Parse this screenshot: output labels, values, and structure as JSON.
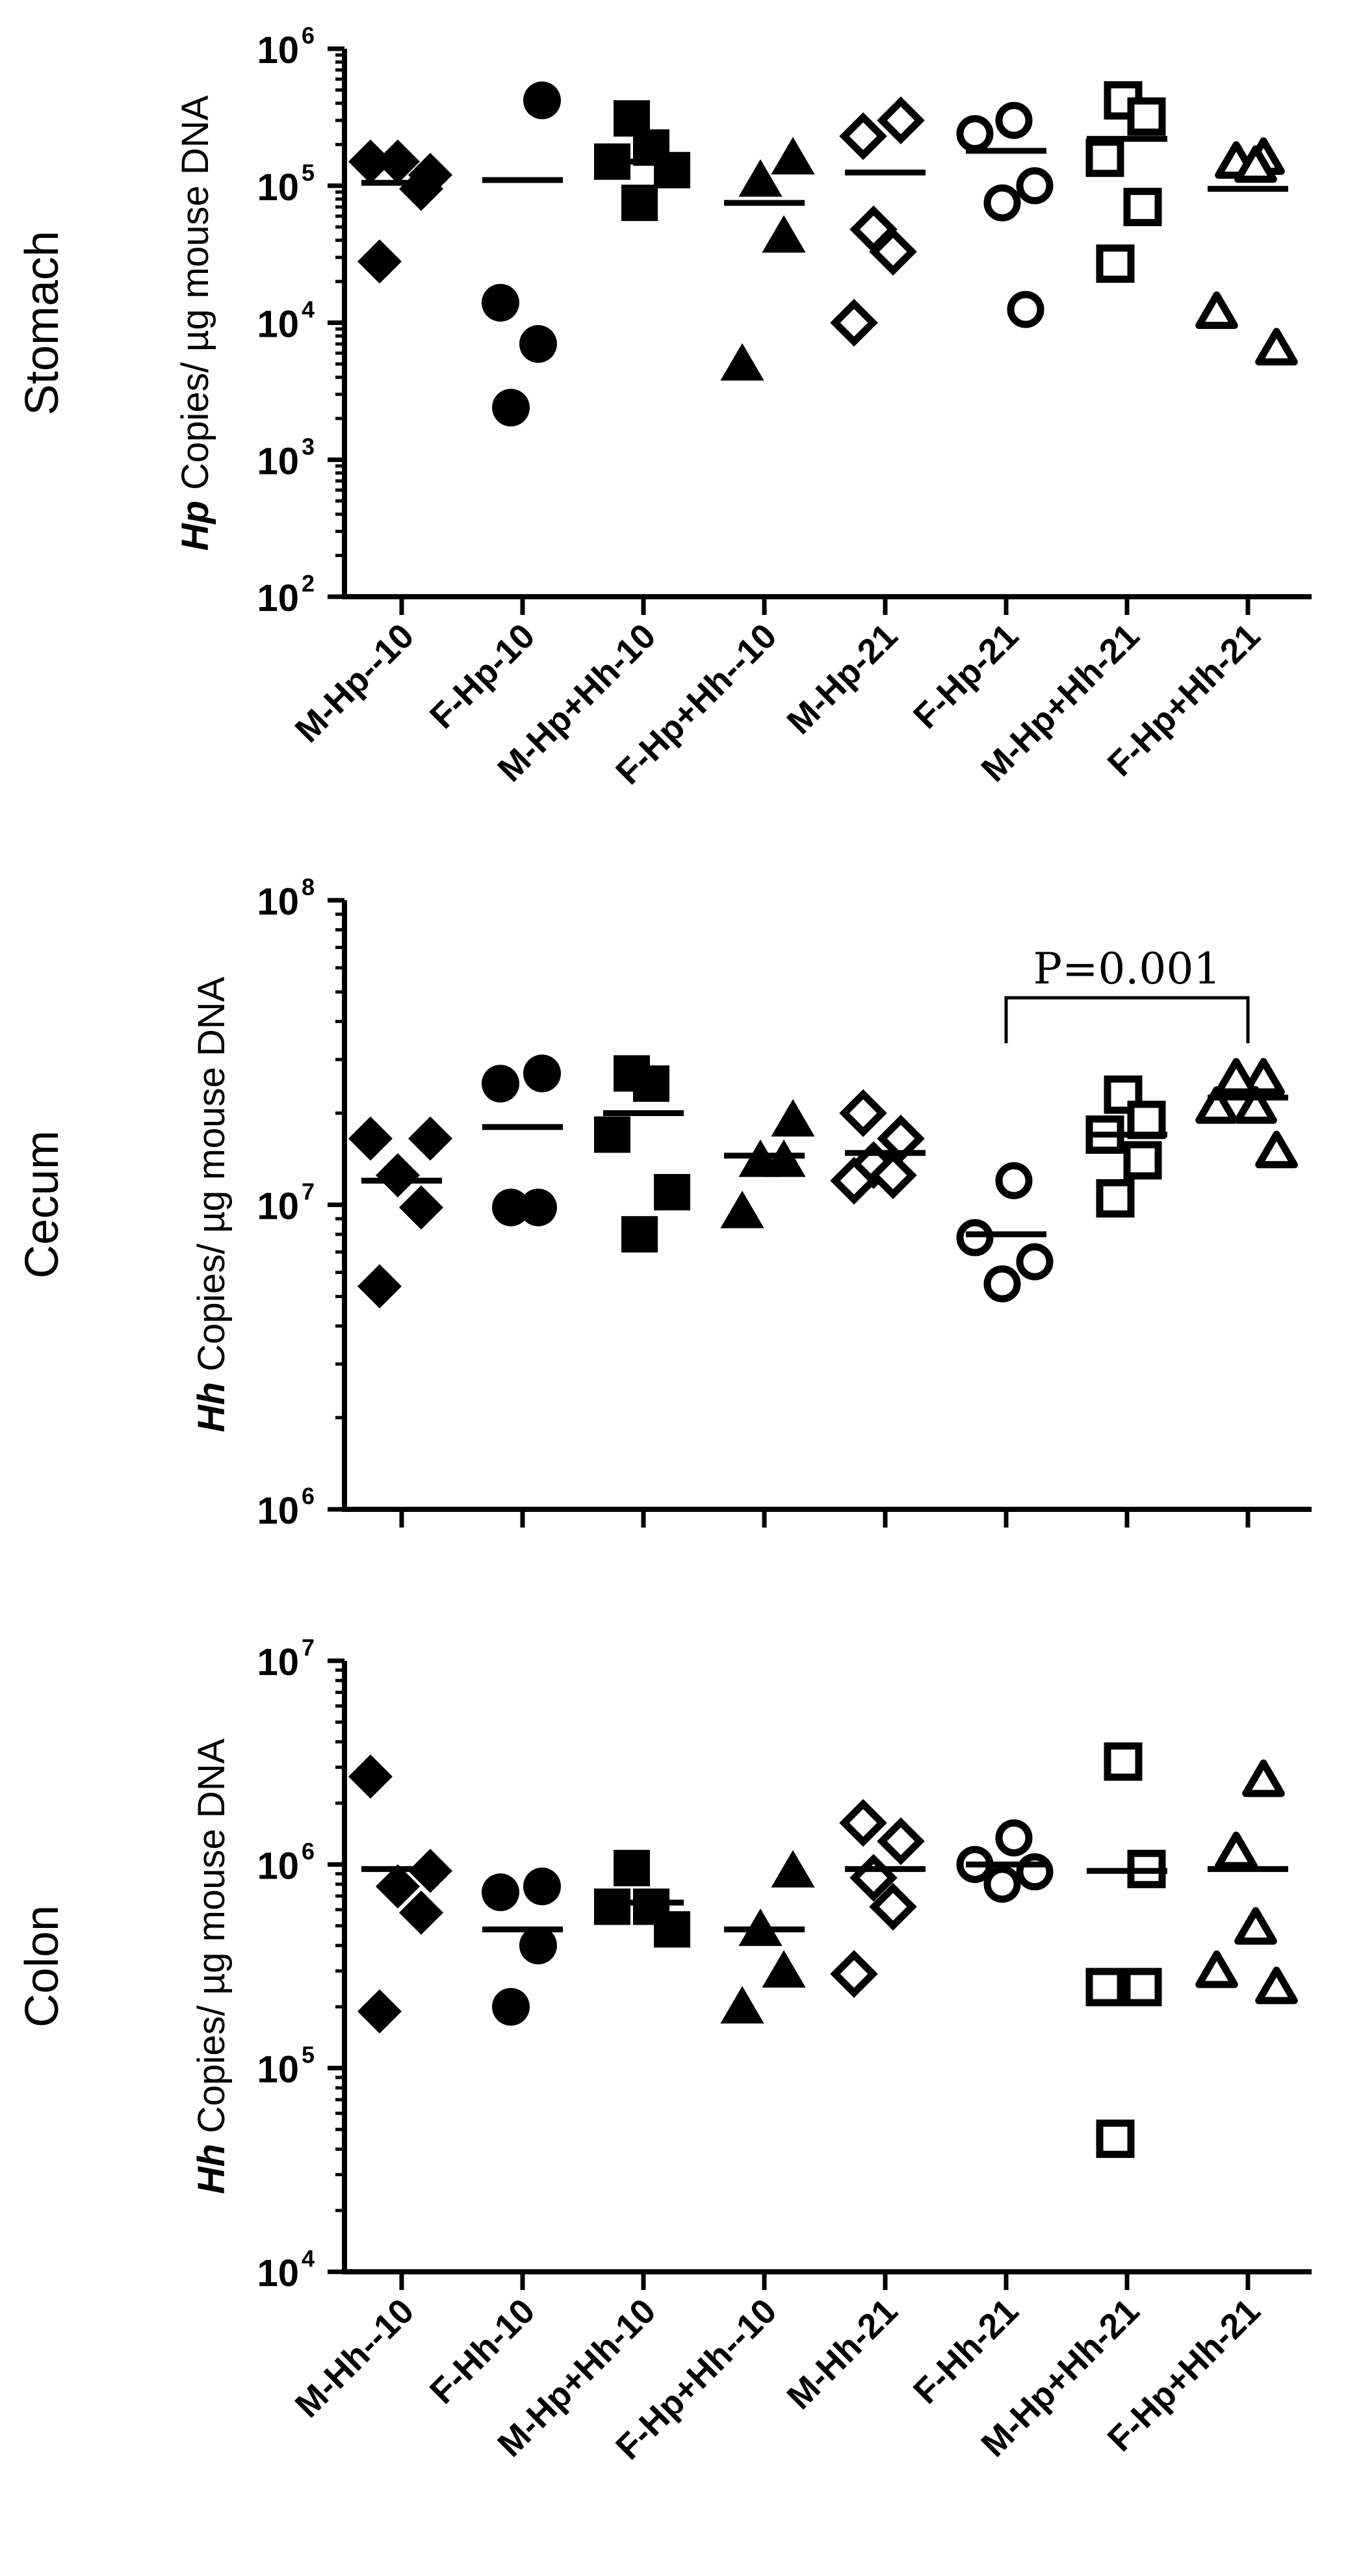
{
  "chart_data": [
    {
      "type": "scatter",
      "section_label": "Stomach",
      "ylabel_italic": "Hp",
      "ylabel_rest": " Copies/ µg mouse DNA",
      "yscale": "log",
      "ylim": [
        100,
        1000000
      ],
      "ytick_exponents": [
        2,
        3,
        4,
        5,
        6
      ],
      "categories": [
        "M-Hp--10",
        "F-Hp-10",
        "M-Hp+Hh-10",
        "F-Hp+Hh--10",
        "M-Hp-21",
        "F-Hp-21",
        "M-Hp+Hh-21",
        "F-Hp+Hh-21"
      ],
      "markers": [
        "diamond-filled",
        "circle-filled",
        "square-filled",
        "triangle-filled",
        "diamond-open",
        "circle-open",
        "square-open",
        "triangle-open"
      ],
      "points": [
        [
          150000,
          120000,
          150000,
          95000,
          28000
        ],
        [
          420000,
          14000,
          7000,
          2400
        ],
        [
          310000,
          190000,
          150000,
          130000,
          75000
        ],
        [
          160000,
          110000,
          43000,
          5000
        ],
        [
          230000,
          300000,
          48000,
          33000,
          10000
        ],
        [
          300000,
          240000,
          100000,
          75000,
          12500
        ],
        [
          420000,
          320000,
          160000,
          70000,
          27000
        ],
        [
          160000,
          150000,
          140000,
          12000,
          6500
        ]
      ],
      "means": [
        105000,
        110000,
        150000,
        75000,
        125000,
        180000,
        220000,
        95000
      ],
      "annotation": null
    },
    {
      "type": "scatter",
      "section_label": "Cecum",
      "ylabel_italic": "Hh",
      "ylabel_rest": " Copies/ µg mouse DNA",
      "yscale": "log",
      "ylim": [
        1000000,
        100000000
      ],
      "ytick_exponents": [
        6,
        7,
        8
      ],
      "categories": [],
      "markers": [
        "diamond-filled",
        "circle-filled",
        "square-filled",
        "triangle-filled",
        "diamond-open",
        "circle-open",
        "square-open",
        "triangle-open"
      ],
      "points": [
        [
          16500000,
          16500000,
          12500000,
          9800000,
          5400000
        ],
        [
          27000000,
          25000000,
          9800000,
          9800000
        ],
        [
          27000000,
          25000000,
          17000000,
          11000000,
          8000000
        ],
        [
          19000000,
          14000000,
          14000000,
          9500000
        ],
        [
          20000000,
          16500000,
          13500000,
          12500000,
          12000000
        ],
        [
          12000000,
          7800000,
          6500000,
          5500000
        ],
        [
          23000000,
          19000000,
          17000000,
          14000000,
          10500000
        ],
        [
          26000000,
          26000000,
          21000000,
          21000000,
          15000000
        ]
      ],
      "means": [
        12000000,
        18000000,
        20000000,
        14500000,
        14800000,
        8000000,
        17000000,
        22500000
      ],
      "annotation": {
        "text": "P=0.001",
        "from_group": 5,
        "to_group": 7
      }
    },
    {
      "type": "scatter",
      "section_label": "Colon",
      "ylabel_italic": "Hh",
      "ylabel_rest": " Copies/ µg mouse DNA",
      "yscale": "log",
      "ylim": [
        10000,
        10000000
      ],
      "ytick_exponents": [
        4,
        5,
        6,
        7
      ],
      "categories": [
        "M-Hh--10",
        "F-Hh-10",
        "M-Hp+Hh-10",
        "F-Hp+Hh--10",
        "M-Hh-21",
        "F-Hh-21",
        "M-Hp+Hh-21",
        "F-Hp+Hh-21"
      ],
      "markers": [
        "diamond-filled",
        "circle-filled",
        "square-filled",
        "triangle-filled",
        "diamond-open",
        "circle-open",
        "square-open",
        "triangle-open"
      ],
      "points": [
        [
          2700000,
          930000,
          780000,
          580000,
          190000
        ],
        [
          780000,
          730000,
          400000,
          200000
        ],
        [
          960000,
          620000,
          620000,
          480000
        ],
        [
          930000,
          480000,
          300000,
          200000
        ],
        [
          1600000,
          1300000,
          860000,
          620000,
          290000
        ],
        [
          1350000,
          1000000,
          920000,
          800000
        ],
        [
          3200000,
          950000,
          250000,
          250000,
          45000
        ],
        [
          2600000,
          1150000,
          490000,
          300000,
          250000
        ]
      ],
      "means": [
        950000,
        480000,
        650000,
        480000,
        950000,
        1000000,
        930000,
        950000
      ],
      "annotation": null
    }
  ]
}
